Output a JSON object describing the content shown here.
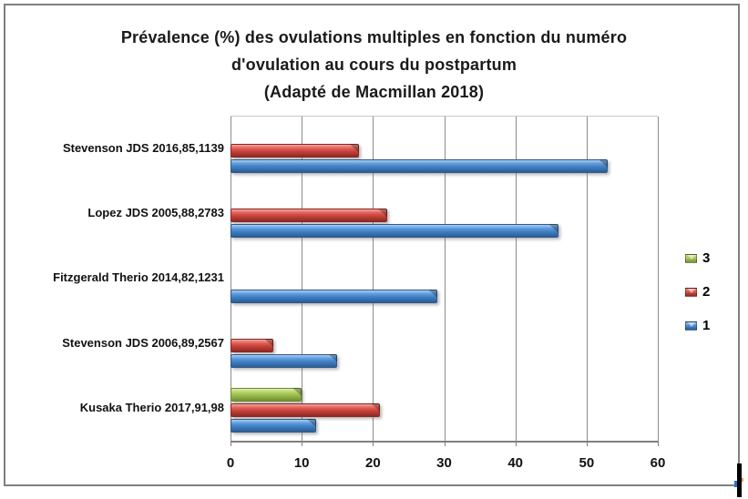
{
  "chart_data": {
    "type": "bar",
    "orientation": "horizontal",
    "title_lines": [
      "Prévalence (%) des ovulations multiples en fonction du numéro",
      "d'ovulation au cours du postpartum",
      "(Adapté de Macmillan 2018)"
    ],
    "categories": [
      "Stevenson JDS 2016,85,1139",
      "Lopez JDS 2005,88,2783",
      "Fitzgerald Therio 2014,82,1231",
      "Stevenson JDS 2006,89,2567",
      "Kusaka Therio 2017,91,98"
    ],
    "series": [
      {
        "name": "3",
        "color": "#9CBB4E",
        "values": [
          null,
          null,
          null,
          null,
          10
        ]
      },
      {
        "name": "2",
        "color": "#C8423A",
        "values": [
          18,
          22,
          null,
          6,
          21
        ]
      },
      {
        "name": "1",
        "color": "#4080C6",
        "values": [
          53,
          46,
          29,
          15,
          12
        ]
      }
    ],
    "xlim": [
      0,
      60
    ],
    "xticks": [
      0,
      10,
      20,
      30,
      40,
      50,
      60
    ],
    "legend_position": "right",
    "legend_labels": [
      "3",
      "2",
      "1"
    ],
    "grid": "vertical",
    "frame_border_color": "#808080",
    "gridline_color": "#8C8C8C",
    "background": "#FFFFFF"
  }
}
